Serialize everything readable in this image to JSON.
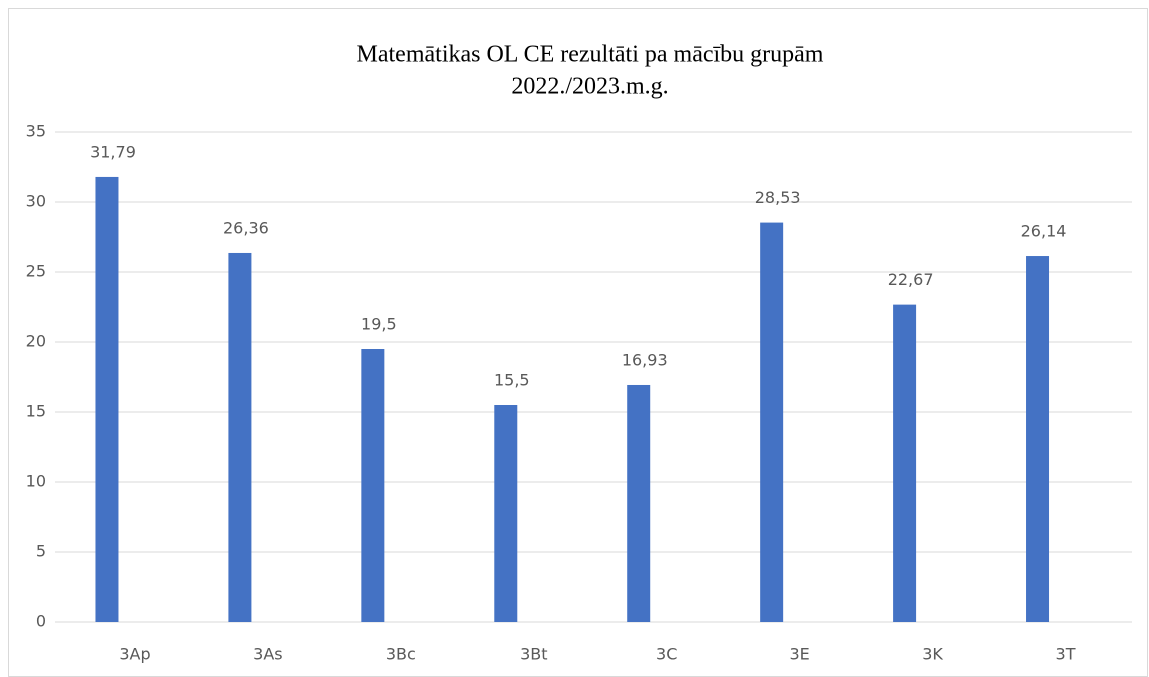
{
  "chart_data": {
    "type": "bar",
    "title": "Matemātikas OL CE rezultāti pa mācību grupām",
    "subtitle": "2022./2023.m.g.",
    "categories": [
      "3Ap",
      "3As",
      "3Bc",
      "3Bt",
      "3C",
      "3E",
      "3K",
      "3T"
    ],
    "values": [
      31.79,
      26.36,
      19.5,
      15.5,
      16.93,
      28.53,
      22.67,
      26.14
    ],
    "value_labels": [
      "31,79",
      "26,36",
      "19,5",
      "15,5",
      "16,93",
      "28,53",
      "22,67",
      "26,14"
    ],
    "color": "#4472c4",
    "ylim": [
      0,
      35
    ],
    "yticks": [
      0,
      5,
      10,
      15,
      20,
      25,
      30,
      35
    ],
    "grid": true
  }
}
